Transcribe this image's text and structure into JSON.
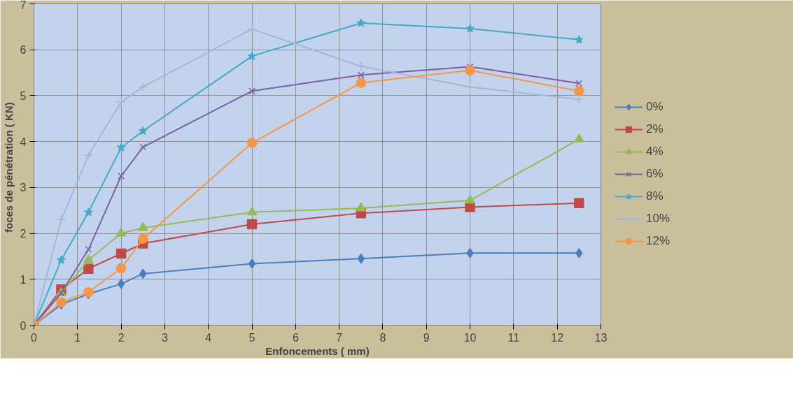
{
  "chart_data": {
    "type": "line",
    "xlabel": "Enfoncements ( mm)",
    "ylabel": "foces  de pénétration  ( KN)",
    "x": [
      0,
      0.625,
      1.25,
      2,
      2.5,
      5,
      7.5,
      10,
      12.5
    ],
    "xlim": [
      0,
      13
    ],
    "xticks": [
      0,
      1,
      2,
      3,
      4,
      5,
      6,
      7,
      8,
      9,
      10,
      11,
      12,
      13
    ],
    "ylim": [
      0,
      7
    ],
    "yticks": [
      0,
      1,
      2,
      3,
      4,
      5,
      6,
      7
    ],
    "grid": true,
    "legend": "right",
    "series": [
      {
        "name": "0%",
        "color": "#4a7ebb",
        "marker": "diamond",
        "values": [
          0,
          0.45,
          0.68,
          0.9,
          1.12,
          1.34,
          1.45,
          1.57,
          1.57
        ]
      },
      {
        "name": "2%",
        "color": "#be4b48",
        "marker": "square",
        "values": [
          0,
          0.78,
          1.23,
          1.56,
          1.78,
          2.2,
          2.44,
          2.57,
          2.66
        ]
      },
      {
        "name": "4%",
        "color": "#98b954",
        "marker": "triangle",
        "values": [
          0,
          0.7,
          1.42,
          2.0,
          2.12,
          2.46,
          2.55,
          2.72,
          4.05
        ]
      },
      {
        "name": "6%",
        "color": "#7d60a0",
        "marker": "x",
        "values": [
          0,
          0.7,
          1.65,
          3.25,
          3.88,
          5.1,
          5.45,
          5.63,
          5.27
        ]
      },
      {
        "name": "8%",
        "color": "#46aac5",
        "marker": "star",
        "values": [
          0,
          1.42,
          2.46,
          3.87,
          4.23,
          5.86,
          6.58,
          6.46,
          6.22
        ]
      },
      {
        "name": "10%",
        "color": "#a3b8d9",
        "marker": "cross",
        "values": [
          0,
          2.3,
          3.7,
          4.86,
          5.19,
          6.45,
          5.64,
          5.19,
          4.92
        ]
      },
      {
        "name": "12%",
        "color": "#f79646",
        "marker": "circle",
        "values": [
          0,
          0.5,
          0.72,
          1.24,
          1.88,
          3.97,
          5.28,
          5.55,
          5.1
        ]
      }
    ]
  }
}
